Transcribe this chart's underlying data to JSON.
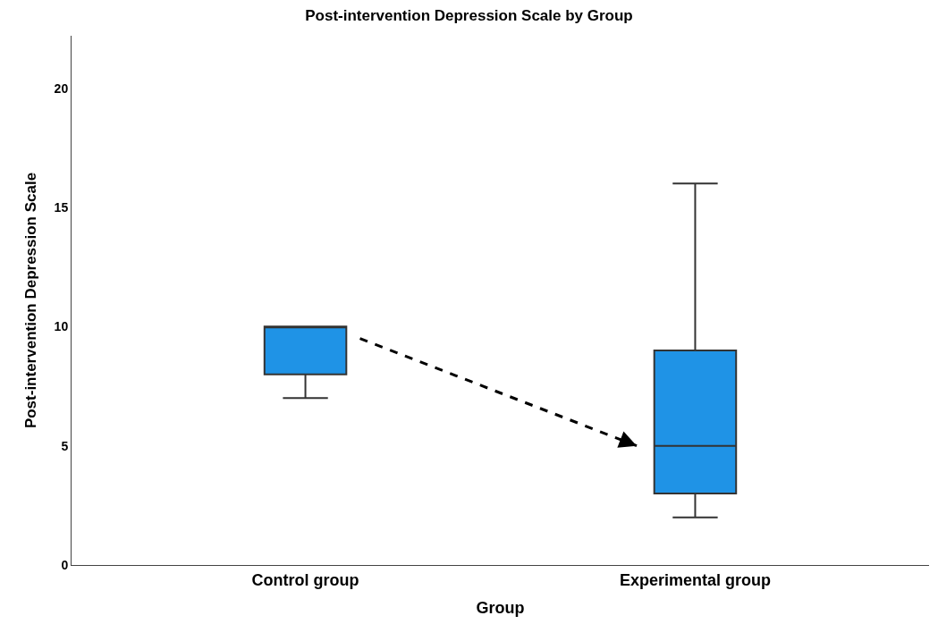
{
  "chart_data": {
    "type": "box",
    "title": "Post-intervention Depression Scale by Group",
    "xlabel": "Group",
    "ylabel": "Post-intervention Depression Scale",
    "categories": [
      "Control group",
      "Experimental group"
    ],
    "boxes": [
      {
        "low": 7,
        "q1": 8,
        "median": 10,
        "q3": 10,
        "high": 10
      },
      {
        "low": 2,
        "q1": 3,
        "median": 5,
        "q3": 9,
        "high": 16
      }
    ],
    "color": "#1f93e6",
    "ylim": [
      0,
      22.2
    ],
    "yticks": [
      0,
      5,
      10,
      15,
      20
    ]
  }
}
